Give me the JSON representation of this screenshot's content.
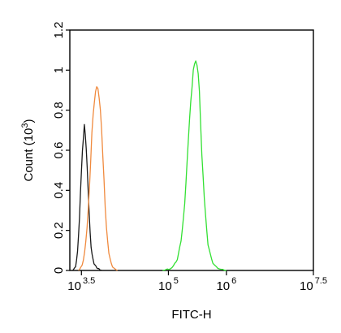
{
  "chart_data": {
    "type": "line",
    "xlabel": "FITC-H",
    "ylabel": {
      "text": "Count  (10",
      "exponent": "3",
      "close": ")"
    },
    "x_scale": "log10",
    "xlim": [
      3.3,
      7.5
    ],
    "ylim": [
      0,
      1.2
    ],
    "y_ticks": [
      "0",
      "0.2",
      "0.4",
      "0.6",
      "0.8",
      "1",
      "1.2"
    ],
    "x_ticks": [
      {
        "base": "10",
        "exponent": "3.5",
        "value": 3.5
      },
      {
        "base": "10",
        "exponent": "5",
        "value": 5
      },
      {
        "base": "10",
        "exponent": "6",
        "value": 6
      },
      {
        "base": "10",
        "exponent": "7.5",
        "value": 7.5
      }
    ],
    "grid": false,
    "legend": "none",
    "series": [
      {
        "color": "#1a1a1a",
        "peak_log10_x": 3.55,
        "peak_count": 0.72,
        "x": [
          3.35,
          3.4,
          3.43,
          3.46,
          3.49,
          3.52,
          3.55,
          3.58,
          3.61,
          3.64,
          3.67,
          3.72,
          3.78,
          3.85
        ],
        "y": [
          0.0,
          0.02,
          0.08,
          0.22,
          0.43,
          0.62,
          0.72,
          0.64,
          0.45,
          0.24,
          0.1,
          0.03,
          0.01,
          0.0
        ]
      },
      {
        "color": "#f08a3e",
        "peak_log10_x": 3.78,
        "peak_count": 0.93,
        "x": [
          3.45,
          3.52,
          3.56,
          3.6,
          3.64,
          3.68,
          3.73,
          3.78,
          3.83,
          3.88,
          3.92,
          3.97,
          4.03,
          4.12
        ],
        "y": [
          0.0,
          0.03,
          0.1,
          0.22,
          0.43,
          0.68,
          0.88,
          0.93,
          0.8,
          0.52,
          0.25,
          0.09,
          0.02,
          0.0
        ]
      },
      {
        "color": "#33e033",
        "peak_log10_x": 5.48,
        "peak_count": 1.07,
        "x": [
          4.9,
          5.05,
          5.15,
          5.22,
          5.28,
          5.33,
          5.38,
          5.43,
          5.48,
          5.53,
          5.57,
          5.62,
          5.68,
          5.76,
          5.85,
          6.0
        ],
        "y": [
          0.0,
          0.01,
          0.05,
          0.15,
          0.33,
          0.58,
          0.82,
          1.0,
          1.07,
          0.92,
          0.62,
          0.35,
          0.13,
          0.04,
          0.01,
          0.0
        ]
      }
    ]
  }
}
